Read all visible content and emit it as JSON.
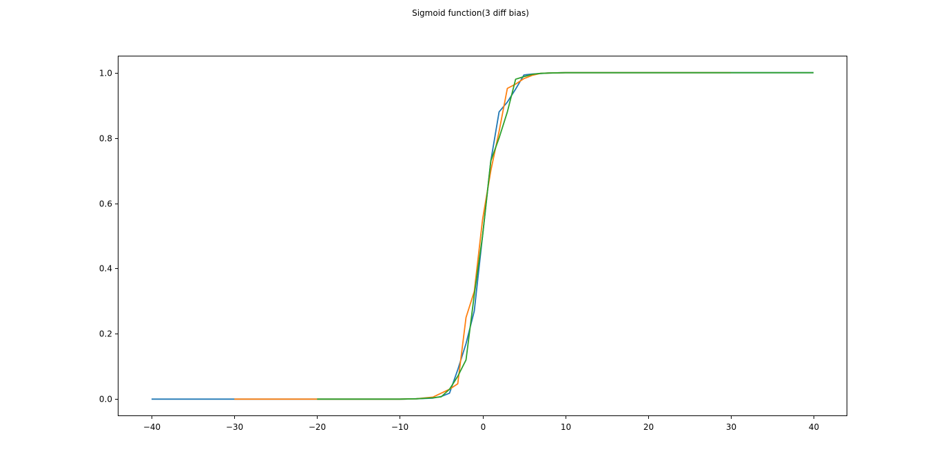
{
  "chart_data": {
    "type": "line",
    "title": "Sigmoid function(3 diff bias)",
    "xlabel": "",
    "ylabel": "",
    "xlim": [
      -44,
      44
    ],
    "ylim": [
      -0.05,
      1.05
    ],
    "xticks": [
      -40,
      -30,
      -20,
      -10,
      0,
      10,
      20,
      30,
      40
    ],
    "xtick_labels": [
      "−40",
      "−30",
      "−20",
      "−10",
      "0",
      "10",
      "20",
      "30",
      "40"
    ],
    "yticks": [
      0.0,
      0.2,
      0.4,
      0.6,
      0.8,
      1.0
    ],
    "ytick_labels": [
      "0.0",
      "0.2",
      "0.4",
      "0.6",
      "0.8",
      "1.0"
    ],
    "grid": false,
    "legend": false,
    "series": [
      {
        "color": "#1f77b4",
        "x": [
          -40,
          -30,
          -20,
          -10,
          -8,
          -6,
          -5,
          -4,
          -3,
          -2,
          -1,
          0,
          1,
          2,
          3,
          4,
          5,
          6,
          8,
          10,
          20,
          30,
          40
        ],
        "y": [
          0.0,
          0.0,
          0.0,
          0.0,
          0.001,
          0.003,
          0.008,
          0.018,
          0.09,
          0.17,
          0.27,
          0.5,
          0.73,
          0.88,
          0.91,
          0.95,
          0.993,
          0.996,
          0.999,
          1.0,
          1.0,
          1.0,
          1.0
        ]
      },
      {
        "color": "#ff7f0e",
        "x": [
          -30,
          -20,
          -10,
          -8,
          -6,
          -5,
          -4,
          -3,
          -2,
          -1,
          0,
          1,
          2,
          3,
          4,
          5,
          6,
          7,
          8,
          10,
          20,
          30
        ],
        "y": [
          0.0,
          0.0,
          0.0,
          0.001,
          0.006,
          0.018,
          0.03,
          0.047,
          0.25,
          0.33,
          0.55,
          0.7,
          0.82,
          0.952,
          0.965,
          0.982,
          0.992,
          0.998,
          0.999,
          1.0,
          1.0,
          1.0
        ]
      },
      {
        "color": "#2ca02c",
        "x": [
          -20,
          -10,
          -8,
          -6,
          -5,
          -4,
          -3,
          -2,
          -1,
          0,
          1,
          2,
          3,
          4,
          5,
          6,
          7,
          8,
          10,
          20,
          30,
          40
        ],
        "y": [
          0.0,
          0.0,
          0.001,
          0.004,
          0.007,
          0.03,
          0.07,
          0.12,
          0.32,
          0.5,
          0.73,
          0.8,
          0.88,
          0.98,
          0.988,
          0.995,
          0.998,
          0.999,
          1.0,
          1.0,
          1.0,
          1.0
        ]
      }
    ]
  }
}
